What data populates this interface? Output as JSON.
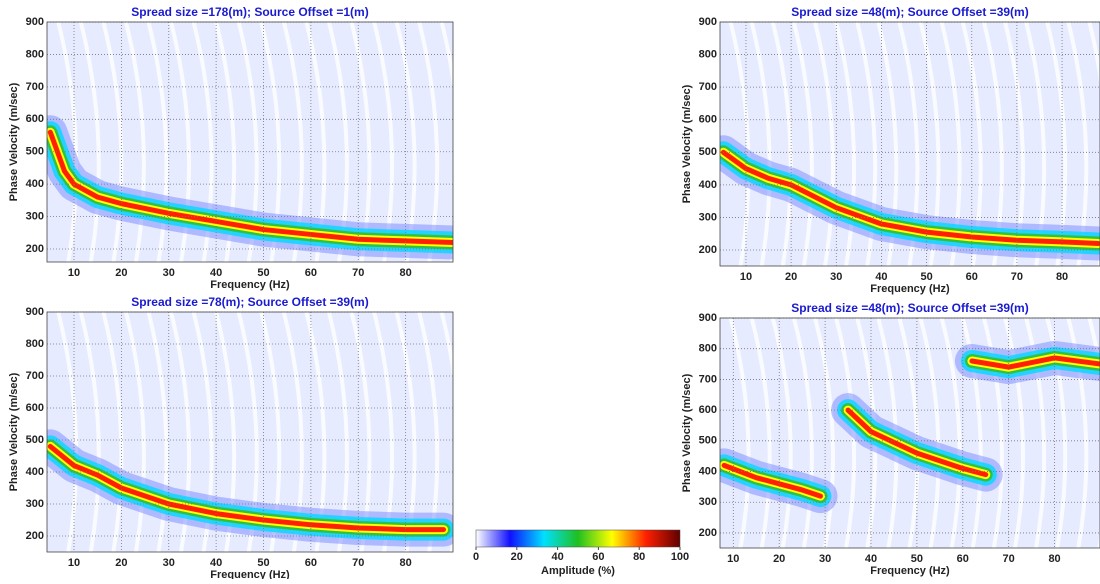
{
  "chart_data": [
    {
      "type": "heatmap",
      "title": "Spread size =178(m); Source Offset =1(m)",
      "x_label": "Frequency (Hz)",
      "y_label": "Phase Velocity (m/sec)",
      "xlim": [
        4.3,
        90
      ],
      "ylim": [
        160,
        900
      ],
      "xticks": [
        10,
        20,
        30,
        40,
        50,
        60,
        70,
        80
      ],
      "yticks": [
        200,
        300,
        400,
        500,
        600,
        700,
        800,
        900
      ],
      "grid": true,
      "ridges": [
        {
          "x": [
            5,
            8,
            10,
            15,
            20,
            30,
            40,
            50,
            60,
            70,
            80,
            90
          ],
          "y": [
            560,
            440,
            400,
            360,
            340,
            310,
            285,
            260,
            245,
            230,
            225,
            220
          ]
        }
      ]
    },
    {
      "type": "heatmap",
      "title": "Spread size =48(m); Source Offset =39(m)",
      "x_label": "Frequency (Hz)",
      "y_label": "Phase Velocity (m/sec)",
      "xlim": [
        4.25,
        88.4
      ],
      "ylim": [
        151,
        900
      ],
      "xticks": [
        10,
        20,
        30,
        40,
        50,
        60,
        70,
        80
      ],
      "yticks": [
        200,
        300,
        400,
        500,
        600,
        700,
        800,
        900
      ],
      "grid": true,
      "ridges": [
        {
          "x": [
            5,
            10,
            15,
            20,
            30,
            40,
            50,
            60,
            70,
            80,
            88
          ],
          "y": [
            500,
            450,
            420,
            400,
            330,
            280,
            255,
            240,
            230,
            225,
            220
          ]
        }
      ]
    },
    {
      "type": "heatmap",
      "title": "Spread size =78(m); Source Offset =39(m)",
      "x_label": "Frequency (Hz)",
      "y_label": "Phase Velocity (m/sec)",
      "xlim": [
        4.3,
        90
      ],
      "ylim": [
        150,
        900
      ],
      "xticks": [
        10,
        20,
        30,
        40,
        50,
        60,
        70,
        80
      ],
      "yticks": [
        200,
        300,
        400,
        500,
        600,
        700,
        800,
        900
      ],
      "grid": true,
      "ridges": [
        {
          "x": [
            5,
            10,
            15,
            20,
            30,
            40,
            50,
            60,
            70,
            80,
            88
          ],
          "y": [
            480,
            420,
            390,
            350,
            300,
            270,
            250,
            235,
            225,
            220,
            220
          ]
        }
      ]
    },
    {
      "type": "heatmap",
      "title": "Spread size =48(m); Source Offset =39(m)",
      "x_label": "Frequency (Hz)",
      "y_label": "Phase Velocity (m/sec)",
      "xlim": [
        7.1,
        89.9
      ],
      "ylim": [
        151,
        900
      ],
      "xticks": [
        10,
        20,
        30,
        40,
        50,
        60,
        70,
        80
      ],
      "yticks": [
        200,
        300,
        400,
        500,
        600,
        700,
        800,
        900
      ],
      "grid": true,
      "ridges": [
        {
          "x": [
            8,
            15,
            20,
            25,
            29,
            31,
            35,
            40,
            50,
            60,
            65
          ],
          "y": [
            420,
            380,
            360,
            340,
            320,
            null,
            600,
            530,
            460,
            410,
            390
          ]
        },
        {
          "x": [
            62,
            70,
            80,
            90
          ],
          "y": [
            760,
            740,
            770,
            750
          ]
        }
      ]
    }
  ],
  "colorbar": {
    "label": "Amplitude (%)",
    "lim": [
      0,
      100
    ],
    "ticks": [
      0,
      20,
      40,
      60,
      80,
      100
    ],
    "colors": [
      "#ffffff",
      "#1010ff",
      "#00e0ff",
      "#20c020",
      "#ffff00",
      "#ff2000",
      "#600000"
    ]
  }
}
